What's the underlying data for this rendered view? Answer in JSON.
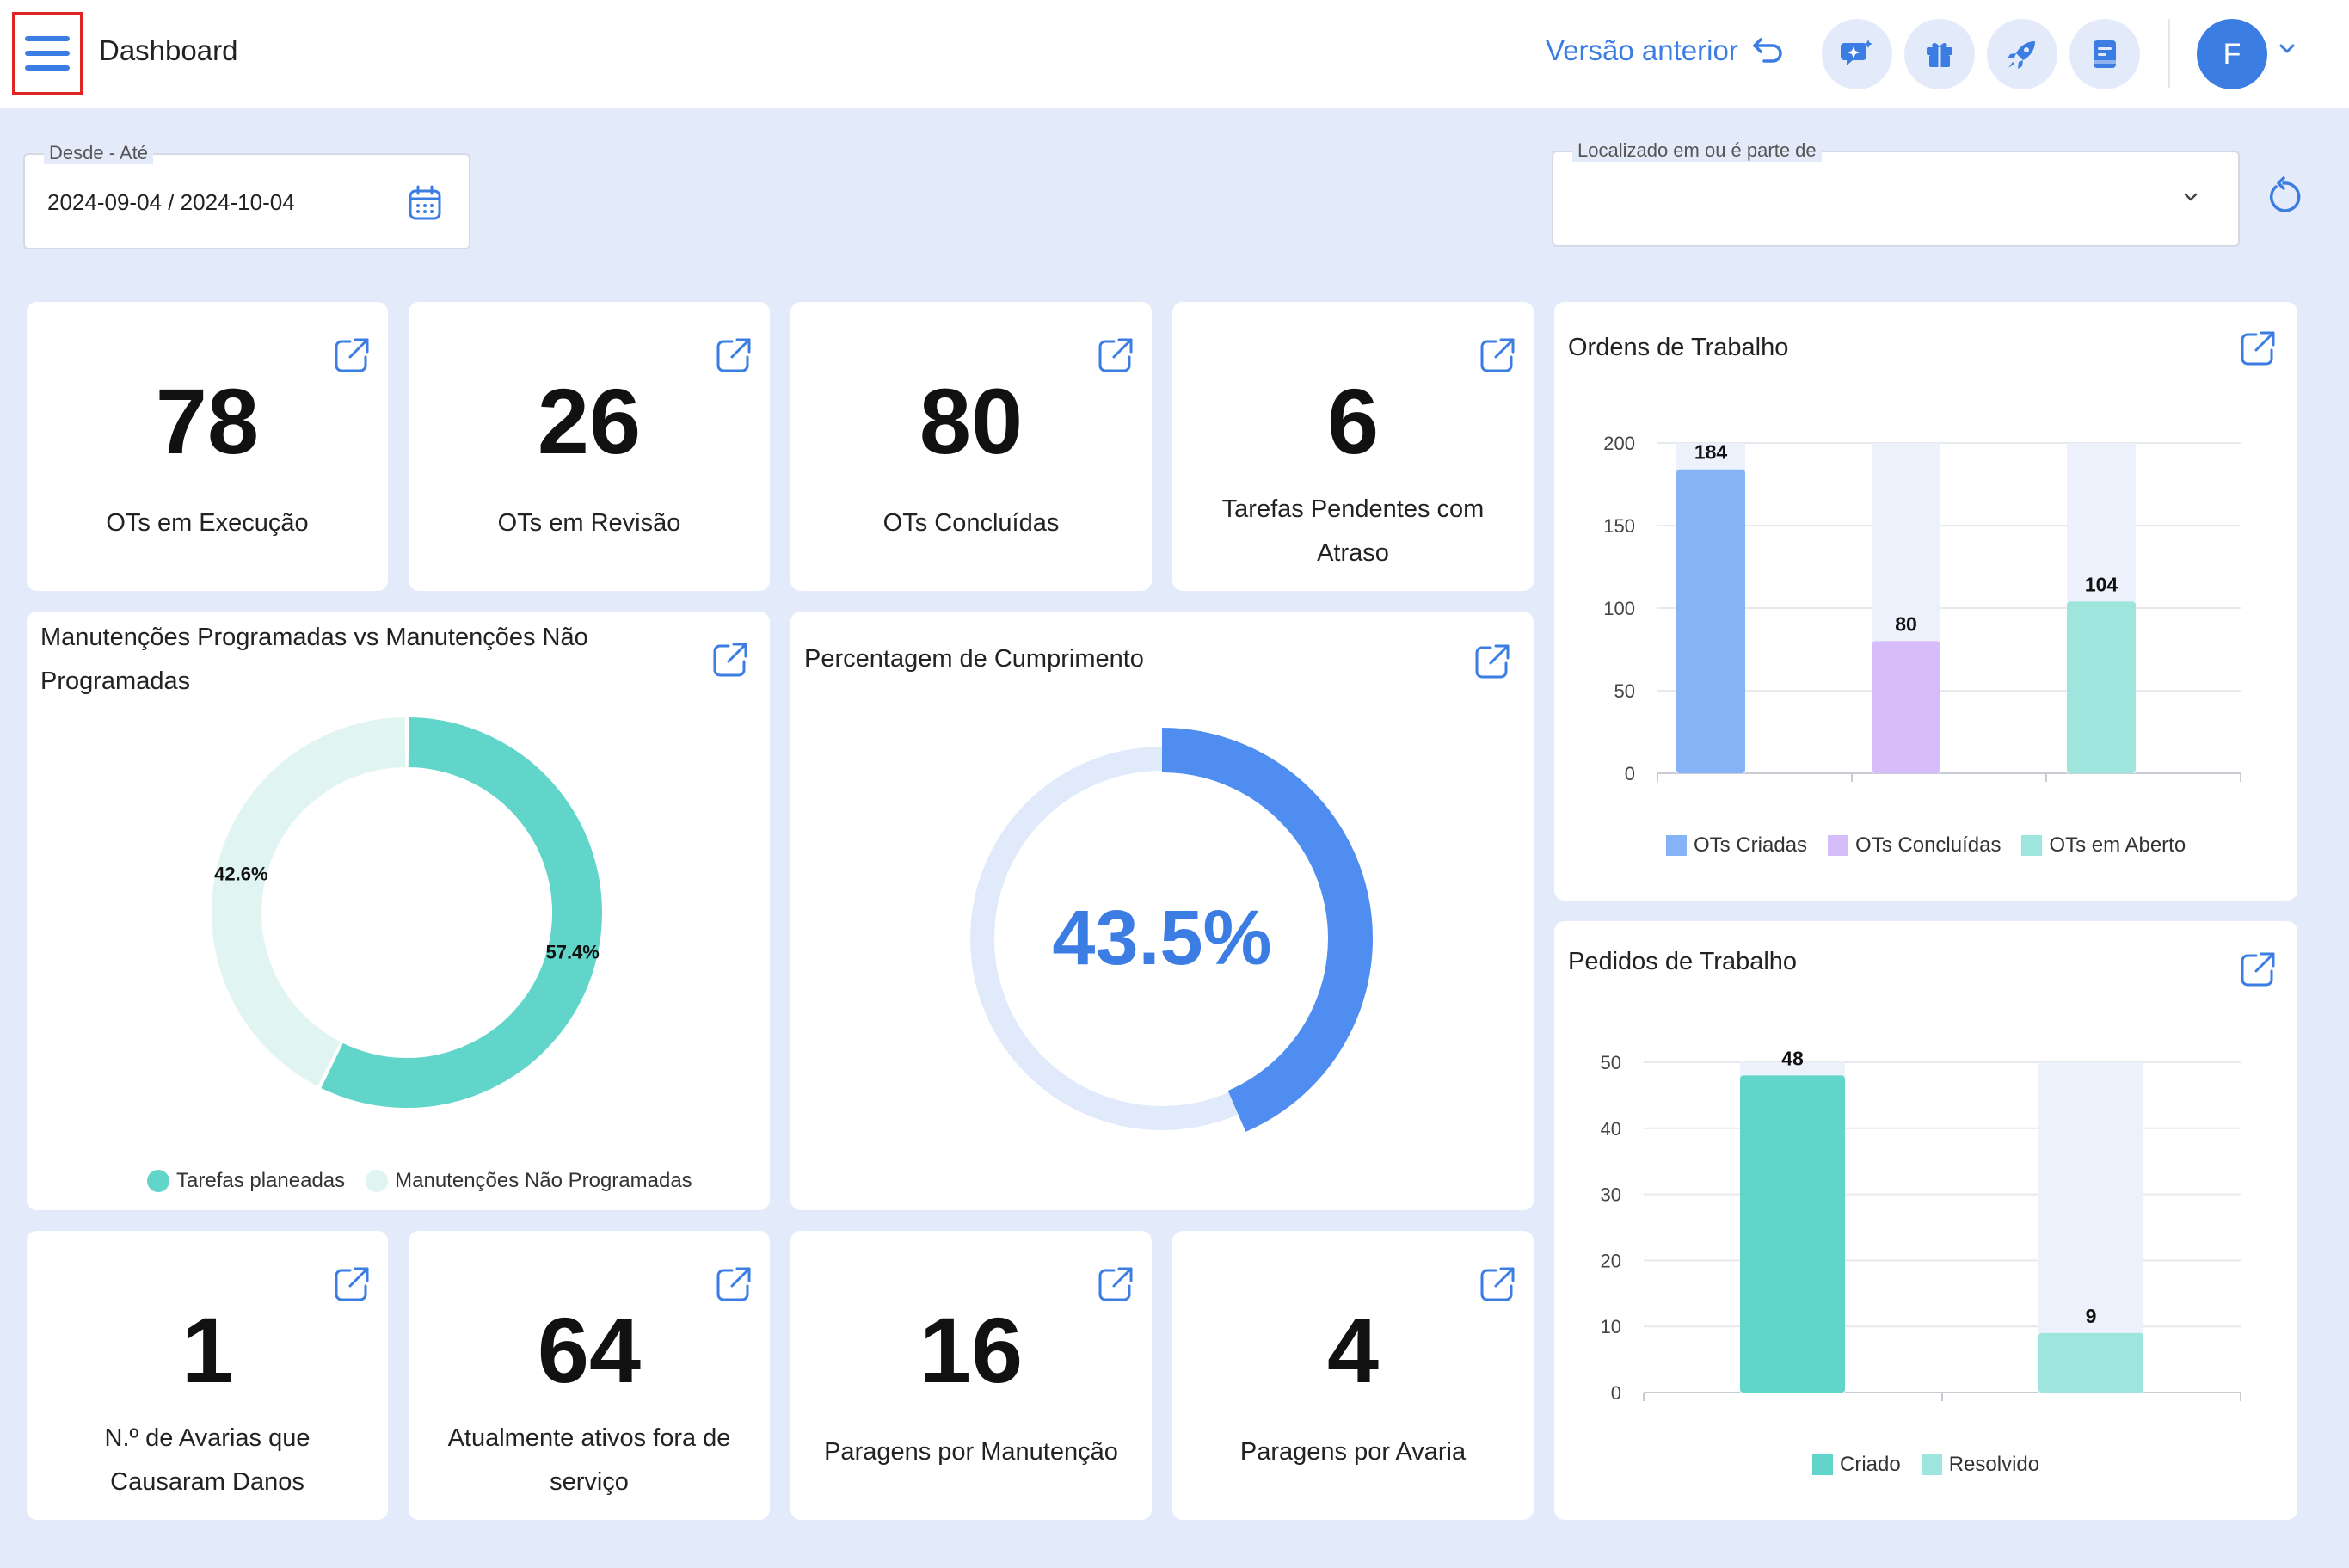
{
  "header": {
    "title": "Dashboard",
    "prev_version": "Versão anterior",
    "avatar_initial": "F"
  },
  "filters": {
    "date_label": "Desde - Até",
    "date_value": "2024-09-04 / 2024-10-04",
    "location_label": "Localizado em ou é parte de",
    "location_value": ""
  },
  "kpis_top": [
    {
      "value": "78",
      "label": "OTs em Execução"
    },
    {
      "value": "26",
      "label": "OTs em Revisão"
    },
    {
      "value": "80",
      "label": "OTs Concluídas"
    },
    {
      "value": "6",
      "label": "Tarefas Pendentes com Atraso"
    }
  ],
  "kpis_bottom": [
    {
      "value": "1",
      "label": "N.º de Avarias que Causaram Danos"
    },
    {
      "value": "64",
      "label": "Atualmente ativos fora de serviço"
    },
    {
      "value": "16",
      "label": "Paragens por Manutenção"
    },
    {
      "value": "4",
      "label": "Paragens por Avaria"
    }
  ],
  "colors": {
    "accent": "#3B7DE3",
    "background": "#E3EBFA",
    "teal": "#62D5CB",
    "teal_light": "#E0F4F2",
    "gauge_track": "#E0EAFB",
    "gauge_fill": "#4F8EF0"
  },
  "icons": {
    "menu": "hamburger-icon",
    "undo": "undo-arrow-icon",
    "chat": "chat-sparkle-icon",
    "gift": "gift-icon",
    "rocket": "rocket-icon",
    "notes": "notes-icon",
    "calendar": "calendar-icon",
    "reset": "refresh-icon",
    "open": "external-link-icon"
  },
  "chart_data": [
    {
      "type": "pie",
      "title": "Manutenções Programadas vs Manutenções Não Programadas",
      "series": [
        {
          "name": "Tarefas planeadas",
          "value": 57.4,
          "label": "57.4%",
          "color": "#62D5CB"
        },
        {
          "name": "Manutenções Não Programadas",
          "value": 42.6,
          "label": "42.6%",
          "color": "#E0F4F2"
        }
      ],
      "legend": "bottom"
    },
    {
      "type": "pie",
      "title": "Percentagem de Cumprimento",
      "value": 43.5,
      "label": "43.5%"
    },
    {
      "type": "bar",
      "title": "Ordens de Trabalho",
      "categories": [
        "OTs Criadas",
        "OTs Concluídas",
        "OTs em Aberto"
      ],
      "values": [
        184,
        80,
        104
      ],
      "value_labels": [
        "184",
        "80",
        "104"
      ],
      "colors": [
        "#86B2F6",
        "#D6BDFA",
        "#9DE5DD"
      ],
      "ylim": [
        0,
        200
      ],
      "yticks": [
        "0",
        "50",
        "100",
        "150",
        "200"
      ],
      "grid": true,
      "legend": "bottom"
    },
    {
      "type": "bar",
      "title": "Pedidos de Trabalho",
      "categories": [
        "Criado",
        "Resolvido"
      ],
      "values": [
        48,
        9
      ],
      "value_labels": [
        "48",
        "9"
      ],
      "colors": [
        "#62D5CB",
        "#9DE5DD"
      ],
      "ylim": [
        0,
        50
      ],
      "yticks": [
        "0",
        "10",
        "20",
        "30",
        "40",
        "50"
      ],
      "grid": true,
      "legend": "bottom"
    }
  ]
}
